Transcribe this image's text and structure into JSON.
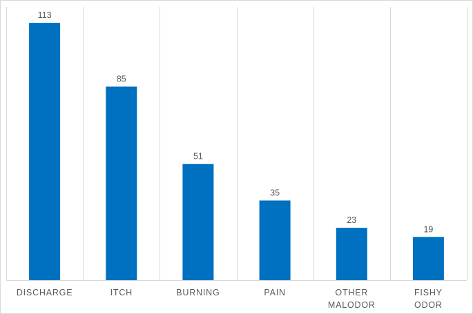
{
  "chart_data": {
    "type": "bar",
    "categories": [
      "DISCHARGE",
      "ITCH",
      "BURNING",
      "PAIN",
      "OTHER MALODOR",
      "FISHY ODOR"
    ],
    "category_lines": [
      [
        "DISCHARGE"
      ],
      [
        "ITCH"
      ],
      [
        "BURNING"
      ],
      [
        "PAIN"
      ],
      [
        "OTHER",
        "MALODOR"
      ],
      [
        "FISHY",
        "ODOR"
      ]
    ],
    "values": [
      113,
      85,
      51,
      35,
      23,
      19
    ],
    "title": "",
    "xlabel": "",
    "ylabel": "",
    "ylim": [
      0,
      120
    ],
    "bar_color": "#0070c0",
    "grid": "vertical category separators",
    "legend": "none",
    "data_labels": true
  }
}
